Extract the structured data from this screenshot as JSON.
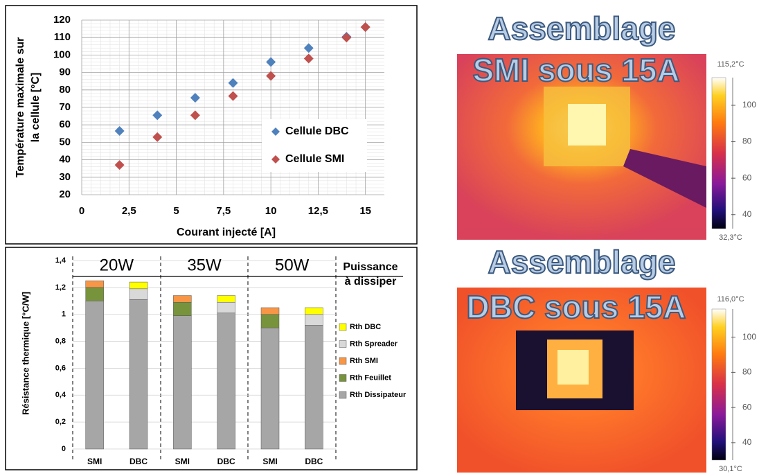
{
  "chart_data": [
    {
      "type": "scatter",
      "y_label": [
        "Température maximale sur",
        "la cellule [°C]"
      ],
      "x_label": "Courant injecté [A]",
      "x": [
        2,
        4,
        6,
        8,
        10,
        12,
        14,
        15
      ],
      "series": [
        {
          "name": "Cellule DBC",
          "color": "#4f81bd",
          "values": [
            56.5,
            65.5,
            75.5,
            84,
            96,
            104,
            110.5,
            116
          ]
        },
        {
          "name": "Cellule SMI",
          "color": "#c0504d",
          "values": [
            37,
            53,
            65.5,
            76.5,
            88,
            98,
            110,
            116
          ]
        }
      ],
      "xlim": [
        0,
        16
      ],
      "xticks": [
        0,
        {
          "value": 2.5,
          "label": "2,5"
        },
        5,
        {
          "value": 7.5,
          "label": "7,5"
        },
        10,
        {
          "value": 12.5,
          "label": "12,5"
        },
        15
      ],
      "ylim": [
        20,
        120
      ],
      "yticks": [
        20,
        30,
        40,
        50,
        60,
        70,
        80,
        90,
        100,
        110,
        120
      ],
      "grid": true,
      "legend": "right"
    },
    {
      "type": "stacked-bar",
      "y_label": "Résistance thermique [°C/W]",
      "categories": [
        "SMI",
        "DBC",
        "SMI",
        "DBC",
        "SMI",
        "DBC"
      ],
      "group_labels": [
        "20W",
        "35W",
        "50W"
      ],
      "annotation": [
        "Puissance",
        "à dissiper"
      ],
      "series": [
        {
          "name": "Rth Dissipateur",
          "color": "#a6a6a6",
          "values": [
            1.1,
            1.11,
            0.99,
            1.01,
            0.9,
            0.92
          ]
        },
        {
          "name": "Rth Feuillet",
          "color": "#77933c",
          "values": [
            0.1,
            0,
            0.1,
            0,
            0.1,
            0
          ]
        },
        {
          "name": "Rth SMI",
          "color": "#f79646",
          "values": [
            0.05,
            0,
            0.05,
            0,
            0.05,
            0
          ]
        },
        {
          "name": "Rth Spreader",
          "color": "#d9d9d9",
          "values": [
            0,
            0.08,
            0,
            0.08,
            0,
            0.08
          ]
        },
        {
          "name": "Rth DBC",
          "color": "#ffff00",
          "values": [
            0,
            0.05,
            0,
            0.05,
            0,
            0.05
          ]
        }
      ],
      "ylim": [
        0,
        1.4
      ],
      "yticks": [
        0,
        {
          "value": 0.2,
          "label": "0,2"
        },
        {
          "value": 0.4,
          "label": "0,4"
        },
        {
          "value": 0.6,
          "label": "0,6"
        },
        {
          "value": 0.8,
          "label": "0,8"
        },
        1,
        {
          "value": 1.2,
          "label": "1,2"
        },
        {
          "value": 1.4,
          "label": "1,4"
        }
      ],
      "grid": true,
      "legend": "right"
    }
  ],
  "thermal_images": [
    {
      "title": "Assemblage",
      "subtitle": "SMI sous 15A",
      "scale_max": {
        "value": 115.2,
        "label": "115,2°C"
      },
      "scale_min": {
        "value": 32.3,
        "label": "32,3°C"
      },
      "scale_ticks": [
        100,
        80,
        60,
        40
      ]
    },
    {
      "title": "Assemblage",
      "subtitle": "DBC sous 15A",
      "scale_max": {
        "value": 116.0,
        "label": "116,0°C"
      },
      "scale_min": {
        "value": 30.1,
        "label": "30,1°C"
      },
      "scale_ticks": [
        100,
        80,
        60,
        40
      ]
    }
  ]
}
